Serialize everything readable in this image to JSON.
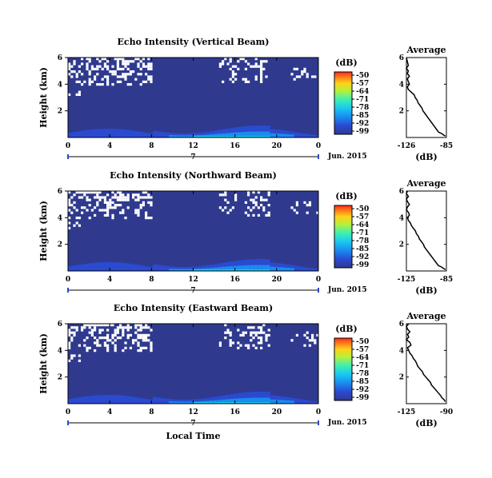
{
  "chart_data": [
    {
      "type": "heatmap",
      "title": "Echo Intensity (Vertical Beam)",
      "ylabel": "Height (km)",
      "xlabel": "",
      "x_ticks": [
        "0",
        "4",
        "8",
        "12",
        "16",
        "20",
        "0"
      ],
      "y_ticks": [
        "6",
        "4",
        "2"
      ],
      "x_range": [
        0,
        24
      ],
      "y_range": [
        0,
        6
      ],
      "date_axis": {
        "label": "Jun. 2015",
        "ticks": [
          "7"
        ]
      },
      "colorbar": {
        "unit": "(dB)",
        "ticks": [
          "-50",
          "-57",
          "-64",
          "-71",
          "-78",
          "-85",
          "-92",
          "-99"
        ]
      },
      "profile": {
        "title": "Average",
        "xlabel": "(dB)",
        "x_ticks": [
          "-126",
          "-85"
        ],
        "y_ticks": [
          "6",
          "4",
          "2"
        ],
        "x_range": [
          -126,
          -85
        ],
        "y_range": [
          0,
          6
        ],
        "line_color": "#000000",
        "points": [
          [
            -126,
            6.0
          ],
          [
            -125,
            5.7
          ],
          [
            -124,
            5.4
          ],
          [
            -126,
            5.2
          ],
          [
            -124,
            5.0
          ],
          [
            -125,
            4.8
          ],
          [
            -123,
            4.6
          ],
          [
            -125,
            4.4
          ],
          [
            -124,
            4.2
          ],
          [
            -123,
            4.0
          ],
          [
            -125,
            3.8
          ],
          [
            -124,
            3.6
          ],
          [
            -121,
            3.4
          ],
          [
            -118,
            3.2
          ],
          [
            -117,
            3.0
          ],
          [
            -115,
            2.8
          ],
          [
            -114,
            2.6
          ],
          [
            -112,
            2.4
          ],
          [
            -110,
            2.2
          ],
          [
            -109,
            2.0
          ],
          [
            -107,
            1.8
          ],
          [
            -105,
            1.6
          ],
          [
            -103,
            1.4
          ],
          [
            -101,
            1.2
          ],
          [
            -99,
            1.0
          ],
          [
            -97,
            0.8
          ],
          [
            -95,
            0.6
          ],
          [
            -93,
            0.4
          ],
          [
            -90,
            0.3
          ],
          [
            -88,
            0.2
          ],
          [
            -86,
            0.1
          ]
        ]
      }
    },
    {
      "type": "heatmap",
      "title": "Echo Intensity (Northward Beam)",
      "ylabel": "Height (km)",
      "xlabel": "",
      "x_ticks": [
        "0",
        "4",
        "8",
        "12",
        "16",
        "20",
        "0"
      ],
      "y_ticks": [
        "6",
        "4",
        "2"
      ],
      "x_range": [
        0,
        24
      ],
      "y_range": [
        0,
        6
      ],
      "date_axis": {
        "label": "Jun. 2015",
        "ticks": [
          "7"
        ]
      },
      "colorbar": {
        "unit": "(dB)",
        "ticks": [
          "-50",
          "-57",
          "-64",
          "-71",
          "-78",
          "-85",
          "-92",
          "-99"
        ]
      },
      "profile": {
        "title": "Average",
        "xlabel": "(dB)",
        "x_ticks": [
          "-125",
          "-85"
        ],
        "y_ticks": [
          "6",
          "4",
          "2"
        ],
        "x_range": [
          -125,
          -85
        ],
        "y_range": [
          0,
          6
        ],
        "line_color": "#000000",
        "points": [
          [
            -124,
            6.0
          ],
          [
            -125,
            5.8
          ],
          [
            -123,
            5.6
          ],
          [
            -125,
            5.4
          ],
          [
            -124,
            5.2
          ],
          [
            -122,
            5.0
          ],
          [
            -124,
            4.8
          ],
          [
            -125,
            4.6
          ],
          [
            -123,
            4.4
          ],
          [
            -122,
            4.2
          ],
          [
            -124,
            4.0
          ],
          [
            -123,
            3.8
          ],
          [
            -121,
            3.6
          ],
          [
            -120,
            3.4
          ],
          [
            -118,
            3.2
          ],
          [
            -116,
            3.0
          ],
          [
            -115,
            2.8
          ],
          [
            -113,
            2.6
          ],
          [
            -112,
            2.4
          ],
          [
            -110,
            2.2
          ],
          [
            -108,
            2.0
          ],
          [
            -107,
            1.8
          ],
          [
            -105,
            1.6
          ],
          [
            -103,
            1.4
          ],
          [
            -101,
            1.2
          ],
          [
            -99,
            1.0
          ],
          [
            -97,
            0.8
          ],
          [
            -95,
            0.6
          ],
          [
            -93,
            0.4
          ],
          [
            -90,
            0.3
          ],
          [
            -88,
            0.2
          ],
          [
            -86,
            0.1
          ]
        ]
      }
    },
    {
      "type": "heatmap",
      "title": "Echo Intensity (Eastward Beam)",
      "ylabel": "Height (km)",
      "xlabel": "Local Time",
      "x_ticks": [
        "0",
        "4",
        "8",
        "12",
        "16",
        "20",
        "0"
      ],
      "y_ticks": [
        "6",
        "4",
        "2"
      ],
      "x_range": [
        0,
        24
      ],
      "y_range": [
        0,
        6
      ],
      "date_axis": {
        "label": "Jun. 2015",
        "ticks": [
          "7"
        ]
      },
      "colorbar": {
        "unit": "(dB)",
        "ticks": [
          "-50",
          "-57",
          "-64",
          "-71",
          "-78",
          "-85",
          "-92",
          "-99"
        ]
      },
      "profile": {
        "title": "Average",
        "xlabel": "(dB)",
        "x_ticks": [
          "-125",
          "-90"
        ],
        "y_ticks": [
          "6",
          "4",
          "2"
        ],
        "x_range": [
          -125,
          -90
        ],
        "y_range": [
          0,
          6
        ],
        "line_color": "#000000",
        "points": [
          [
            -123,
            6.0
          ],
          [
            -125,
            5.8
          ],
          [
            -124,
            5.6
          ],
          [
            -122,
            5.4
          ],
          [
            -124,
            5.2
          ],
          [
            -123,
            5.0
          ],
          [
            -125,
            4.8
          ],
          [
            -122,
            4.6
          ],
          [
            -121,
            4.4
          ],
          [
            -124,
            4.2
          ],
          [
            -123,
            4.0
          ],
          [
            -122,
            3.8
          ],
          [
            -120,
            3.6
          ],
          [
            -119,
            3.4
          ],
          [
            -117,
            3.2
          ],
          [
            -116,
            3.0
          ],
          [
            -115,
            2.8
          ],
          [
            -113,
            2.6
          ],
          [
            -111,
            2.4
          ],
          [
            -110,
            2.2
          ],
          [
            -108,
            2.0
          ],
          [
            -106,
            1.8
          ],
          [
            -104,
            1.6
          ],
          [
            -103,
            1.4
          ],
          [
            -101,
            1.2
          ],
          [
            -99,
            1.0
          ],
          [
            -97,
            0.8
          ],
          [
            -95,
            0.6
          ],
          [
            -94,
            0.45
          ],
          [
            -92,
            0.3
          ],
          [
            -91,
            0.15
          ]
        ]
      }
    }
  ],
  "colors": {
    "background_field": "#2f3a8f",
    "cloud_white": "#ffffff",
    "colormap": [
      "#ff2a1a",
      "#ff7a1a",
      "#ffd21a",
      "#b8f03a",
      "#3ff0b0",
      "#1ac8f0",
      "#1a8cf0",
      "#2a4ad0",
      "#2f3a8f"
    ]
  }
}
